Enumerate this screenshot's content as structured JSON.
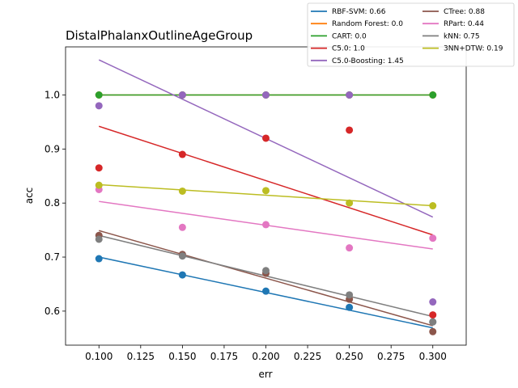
{
  "chart_data": {
    "type": "scatter",
    "title": "DistalPhalanxOutlineAgeGroup",
    "xlabel": "err",
    "ylabel": "acc",
    "xlim": [
      0.08,
      0.32
    ],
    "ylim": [
      0.537,
      1.089
    ],
    "xticks": [
      "0.100",
      "0.125",
      "0.150",
      "0.175",
      "0.200",
      "0.225",
      "0.250",
      "0.275",
      "0.300"
    ],
    "yticks": [
      "0.6",
      "0.7",
      "0.8",
      "0.9",
      "1.0"
    ],
    "grid": false,
    "legend_position": "top-right",
    "legend_columns": 2,
    "series": [
      {
        "name": "RBF-SVM: 0.66",
        "color": "#1f77b4",
        "x": [
          0.1,
          0.15,
          0.2,
          0.25,
          0.3
        ],
        "y": [
          0.697,
          0.667,
          0.637,
          0.607,
          0.58
        ],
        "fit": [
          [
            0.1,
            0.7
          ],
          [
            0.3,
            0.569
          ]
        ]
      },
      {
        "name": "Random Forest: 0.0",
        "color": "#ff7f0e",
        "x": [
          0.1,
          0.15,
          0.2,
          0.25,
          0.3
        ],
        "y": [
          1.0,
          1.0,
          1.0,
          1.0,
          1.0
        ],
        "fit": [
          [
            0.1,
            1.0
          ],
          [
            0.3,
            1.0
          ]
        ]
      },
      {
        "name": "CART: 0.0",
        "color": "#2ca02c",
        "x": [
          0.1,
          0.15,
          0.2,
          0.25,
          0.3
        ],
        "y": [
          1.0,
          1.0,
          1.0,
          1.0,
          1.0
        ],
        "fit": [
          [
            0.1,
            1.0
          ],
          [
            0.3,
            1.0
          ]
        ]
      },
      {
        "name": "C5.0: 1.0",
        "color": "#d62728",
        "x": [
          0.1,
          0.15,
          0.2,
          0.25,
          0.3
        ],
        "y": [
          0.865,
          0.89,
          0.92,
          0.935,
          0.593
        ],
        "fit": [
          [
            0.1,
            0.942
          ],
          [
            0.3,
            0.741
          ]
        ]
      },
      {
        "name": "C5.0-Boosting: 1.45",
        "color": "#9467bd",
        "x": [
          0.1,
          0.15,
          0.2,
          0.25,
          0.3
        ],
        "y": [
          0.98,
          1.0,
          1.0,
          1.0,
          0.617
        ],
        "fit": [
          [
            0.1,
            1.065
          ],
          [
            0.3,
            0.774
          ]
        ]
      },
      {
        "name": "CTree: 0.88",
        "color": "#8c564b",
        "x": [
          0.1,
          0.15,
          0.2,
          0.25,
          0.3
        ],
        "y": [
          0.74,
          0.705,
          0.67,
          0.622,
          0.562
        ],
        "fit": [
          [
            0.1,
            0.749
          ],
          [
            0.3,
            0.573
          ]
        ]
      },
      {
        "name": "RPart: 0.44",
        "color": "#e377c2",
        "x": [
          0.1,
          0.15,
          0.2,
          0.25,
          0.3
        ],
        "y": [
          0.825,
          0.755,
          0.76,
          0.717,
          0.735
        ],
        "fit": [
          [
            0.1,
            0.803
          ],
          [
            0.3,
            0.715
          ]
        ]
      },
      {
        "name": "kNN: 0.75",
        "color": "#7f7f7f",
        "x": [
          0.1,
          0.15,
          0.2,
          0.25,
          0.3
        ],
        "y": [
          0.733,
          0.702,
          0.675,
          0.63,
          0.58
        ],
        "fit": [
          [
            0.1,
            0.74
          ],
          [
            0.3,
            0.59
          ]
        ]
      },
      {
        "name": "3NN+DTW: 0.19",
        "color": "#bcbd22",
        "x": [
          0.1,
          0.15,
          0.2,
          0.25,
          0.3
        ],
        "y": [
          0.833,
          0.822,
          0.823,
          0.8,
          0.795
        ],
        "fit": [
          [
            0.1,
            0.834
          ],
          [
            0.3,
            0.795
          ]
        ]
      }
    ]
  }
}
